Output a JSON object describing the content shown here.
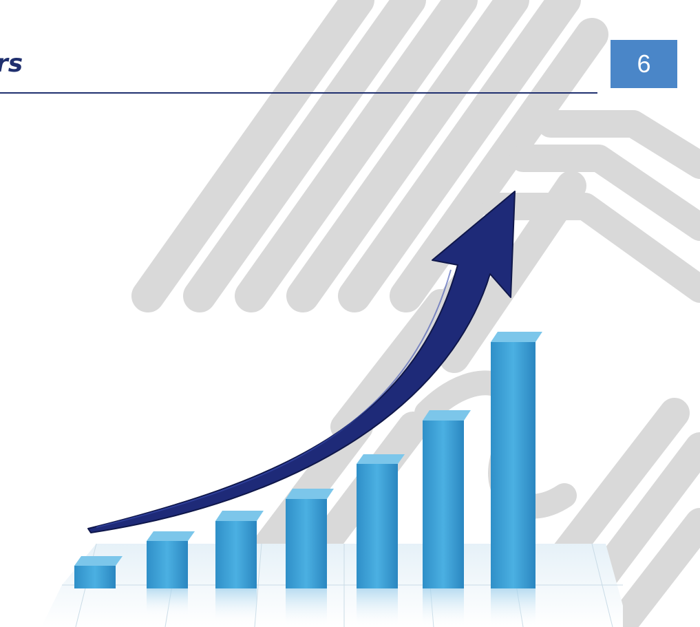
{
  "slide": {
    "title": "rs",
    "page_number": "6"
  },
  "graphic": {
    "bar_color": "#3aa0d6",
    "arrow_color": "#1e2a78",
    "watermark_color": "#d9d9d9",
    "arrow_icon": "upward-trend-arrow-icon"
  }
}
